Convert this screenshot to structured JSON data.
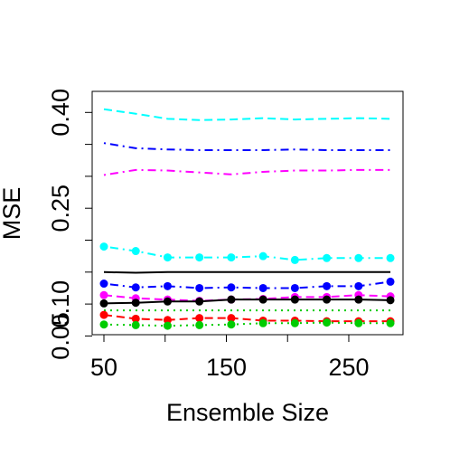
{
  "chart_data": {
    "type": "line",
    "x_label": "Ensemble Size",
    "y_label": "MSE",
    "x": [
      50,
      76,
      102,
      128,
      154,
      180,
      206,
      232,
      258,
      284
    ],
    "xlim": [
      40.4,
      294.3
    ],
    "xticks": [
      50,
      {
        "value": 100,
        "label": null
      },
      150,
      {
        "value": 200,
        "label": null
      },
      250
    ],
    "ylim": [
      0.052,
      0.433
    ],
    "yticks": [
      {
        "value": 0.05,
        "label": "0.05"
      },
      {
        "value": 0.1,
        "label": "0.10"
      },
      {
        "value": 0.15,
        "label": null
      },
      {
        "value": 0.2,
        "label": null
      },
      {
        "value": 0.25,
        "label": "0.25"
      },
      {
        "value": 0.3,
        "label": null
      },
      {
        "value": 0.35,
        "label": null
      },
      {
        "value": 0.4,
        "label": "0.40"
      }
    ],
    "series": [
      {
        "color": "#00ffff",
        "dash": "dashed",
        "points": false,
        "values": [
          0.405,
          0.398,
          0.39,
          0.388,
          0.389,
          0.391,
          0.389,
          0.39,
          0.391,
          0.39
        ]
      },
      {
        "color": "#0000ff",
        "dash": "dotdash",
        "points": false,
        "values": [
          0.352,
          0.344,
          0.342,
          0.341,
          0.341,
          0.341,
          0.342,
          0.341,
          0.341,
          0.341
        ]
      },
      {
        "color": "#ff00ff",
        "dash": "dotdash",
        "points": false,
        "values": [
          0.302,
          0.31,
          0.309,
          0.306,
          0.303,
          0.307,
          0.309,
          0.309,
          0.31,
          0.31
        ]
      },
      {
        "color": "#00ffff",
        "dash": "dotdash",
        "points": true,
        "values": [
          0.19,
          0.183,
          0.173,
          0.173,
          0.173,
          0.175,
          0.169,
          0.172,
          0.172,
          0.172
        ]
      },
      {
        "color": "#000000",
        "dash": "solid",
        "points": false,
        "values": [
          0.15,
          0.149,
          0.15,
          0.15,
          0.15,
          0.15,
          0.15,
          0.15,
          0.15,
          0.15
        ]
      },
      {
        "color": "#0000ff",
        "dash": "dotdash",
        "points": true,
        "values": [
          0.132,
          0.126,
          0.128,
          0.125,
          0.126,
          0.125,
          0.125,
          0.128,
          0.128,
          0.135
        ]
      },
      {
        "color": "#ff00ff",
        "dash": "dashed",
        "points": true,
        "values": [
          0.114,
          0.109,
          0.107,
          0.105,
          0.107,
          0.108,
          0.111,
          0.111,
          0.114,
          0.112
        ]
      },
      {
        "color": "#000000",
        "dash": "solid",
        "points": true,
        "values": [
          0.101,
          0.102,
          0.104,
          0.104,
          0.107,
          0.107,
          0.107,
          0.107,
          0.107,
          0.106
        ]
      },
      {
        "color": "#00cc00",
        "dash": "dotted",
        "points": false,
        "values": [
          0.09,
          0.09,
          0.09,
          0.09,
          0.09,
          0.09,
          0.09,
          0.09,
          0.09,
          0.09
        ]
      },
      {
        "color": "#ff0000",
        "dash": "dashed",
        "points": true,
        "values": [
          0.083,
          0.077,
          0.075,
          0.078,
          0.078,
          0.074,
          0.074,
          0.073,
          0.073,
          0.073
        ]
      },
      {
        "color": "#00cc00",
        "dash": "dotted",
        "points": true,
        "values": [
          0.068,
          0.067,
          0.066,
          0.067,
          0.068,
          0.07,
          0.07,
          0.071,
          0.07,
          0.07
        ]
      }
    ]
  }
}
